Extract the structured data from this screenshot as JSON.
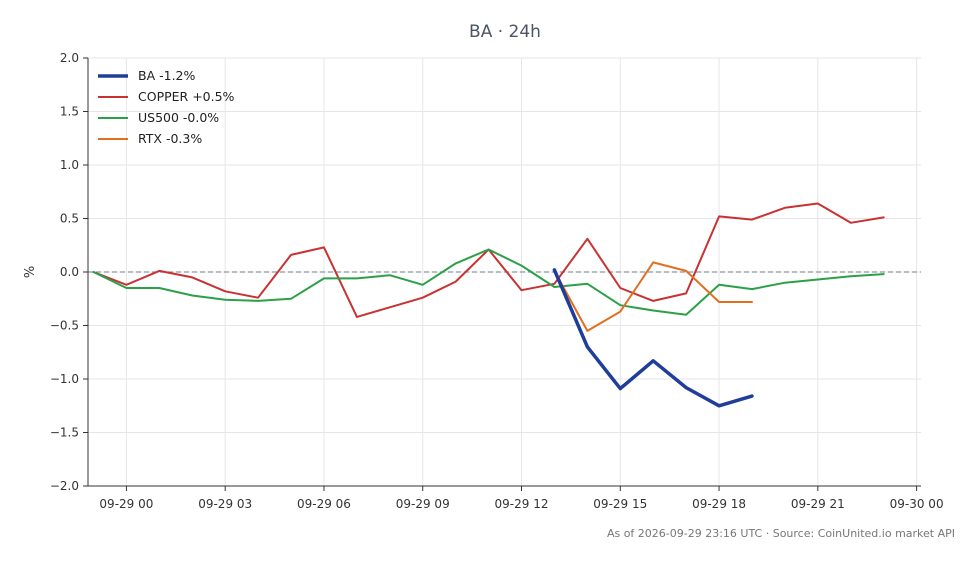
{
  "chart_data": {
    "type": "line",
    "title": "BA · 24h",
    "ylabel": "%",
    "xlabel": "",
    "ylim": [
      -2.0,
      2.0
    ],
    "yticks": [
      "2.0",
      "1.5",
      "1.0",
      "0.5",
      "0.0",
      "−0.5",
      "−1.0",
      "−1.5",
      "−2.0"
    ],
    "ytick_values": [
      2.0,
      1.5,
      1.0,
      0.5,
      0.0,
      -0.5,
      -1.0,
      -1.5,
      -2.0
    ],
    "xlim": [
      "09-28 22:50",
      "09-30 00:08"
    ],
    "xticks": [
      "09-29 00",
      "09-29 03",
      "09-29 06",
      "09-29 09",
      "09-29 12",
      "09-29 15",
      "09-29 18",
      "09-29 21",
      "09-30 00"
    ],
    "xtick_values": [
      "09-29 00:00",
      "09-29 03:00",
      "09-29 06:00",
      "09-29 09:00",
      "09-29 12:00",
      "09-29 15:00",
      "09-29 18:00",
      "09-29 21:00",
      "09-30 00:00"
    ],
    "grid": true,
    "zero_line": true,
    "legend_position": "top-left",
    "series": [
      {
        "name": "BA -1.2%",
        "color": "#1f3d99",
        "width": 3.5,
        "x": [
          "09-29 13:00",
          "09-29 14:00",
          "09-29 15:00",
          "09-29 16:00",
          "09-29 17:00",
          "09-29 18:00",
          "09-29 19:00"
        ],
        "y": [
          0.02,
          -0.7,
          -1.09,
          -0.83,
          -1.08,
          -1.25,
          -1.16
        ]
      },
      {
        "name": "COPPER +0.5%",
        "color": "#c83232",
        "width": 2,
        "x": [
          "09-28 23:00",
          "09-29 00:00",
          "09-29 01:00",
          "09-29 02:00",
          "09-29 03:00",
          "09-29 04:00",
          "09-29 05:00",
          "09-29 06:00",
          "09-29 07:00",
          "09-29 08:00",
          "09-29 09:00",
          "09-29 10:00",
          "09-29 11:00",
          "09-29 12:00",
          "09-29 13:00",
          "09-29 14:00",
          "09-29 15:00",
          "09-29 16:00",
          "09-29 17:00",
          "09-29 18:00",
          "09-29 19:00",
          "09-29 20:00",
          "09-29 21:00",
          "09-29 22:00",
          "09-29 23:00"
        ],
        "y": [
          0.0,
          -0.12,
          0.01,
          -0.05,
          -0.18,
          -0.24,
          0.16,
          0.23,
          -0.42,
          -0.33,
          -0.24,
          -0.09,
          0.21,
          -0.17,
          -0.11,
          0.31,
          -0.15,
          -0.27,
          -0.2,
          0.52,
          0.49,
          0.6,
          0.64,
          0.46,
          0.51
        ]
      },
      {
        "name": "US500 -0.0%",
        "color": "#2ca048",
        "width": 2,
        "x": [
          "09-28 23:00",
          "09-29 00:00",
          "09-29 01:00",
          "09-29 02:00",
          "09-29 03:00",
          "09-29 04:00",
          "09-29 05:00",
          "09-29 06:00",
          "09-29 07:00",
          "09-29 08:00",
          "09-29 09:00",
          "09-29 10:00",
          "09-29 11:00",
          "09-29 12:00",
          "09-29 13:00",
          "09-29 14:00",
          "09-29 15:00",
          "09-29 16:00",
          "09-29 17:00",
          "09-29 18:00",
          "09-29 19:00",
          "09-29 20:00",
          "09-29 21:00",
          "09-29 22:00",
          "09-29 23:00"
        ],
        "y": [
          0.0,
          -0.15,
          -0.15,
          -0.22,
          -0.26,
          -0.27,
          -0.25,
          -0.06,
          -0.06,
          -0.03,
          -0.12,
          0.08,
          0.21,
          0.06,
          -0.14,
          -0.11,
          -0.31,
          -0.36,
          -0.4,
          -0.12,
          -0.16,
          -0.1,
          -0.07,
          -0.04,
          -0.02
        ]
      },
      {
        "name": "RTX -0.3%",
        "color": "#e07020",
        "width": 2,
        "x": [
          "09-29 13:00",
          "09-29 14:00",
          "09-29 15:00",
          "09-29 16:00",
          "09-29 17:00",
          "09-29 18:00",
          "09-29 19:00"
        ],
        "y": [
          0.01,
          -0.55,
          -0.37,
          0.09,
          0.01,
          -0.28,
          -0.28
        ]
      }
    ],
    "footer": "As of 2026-09-29 23:16 UTC · Source: CoinUnited.io market API"
  }
}
